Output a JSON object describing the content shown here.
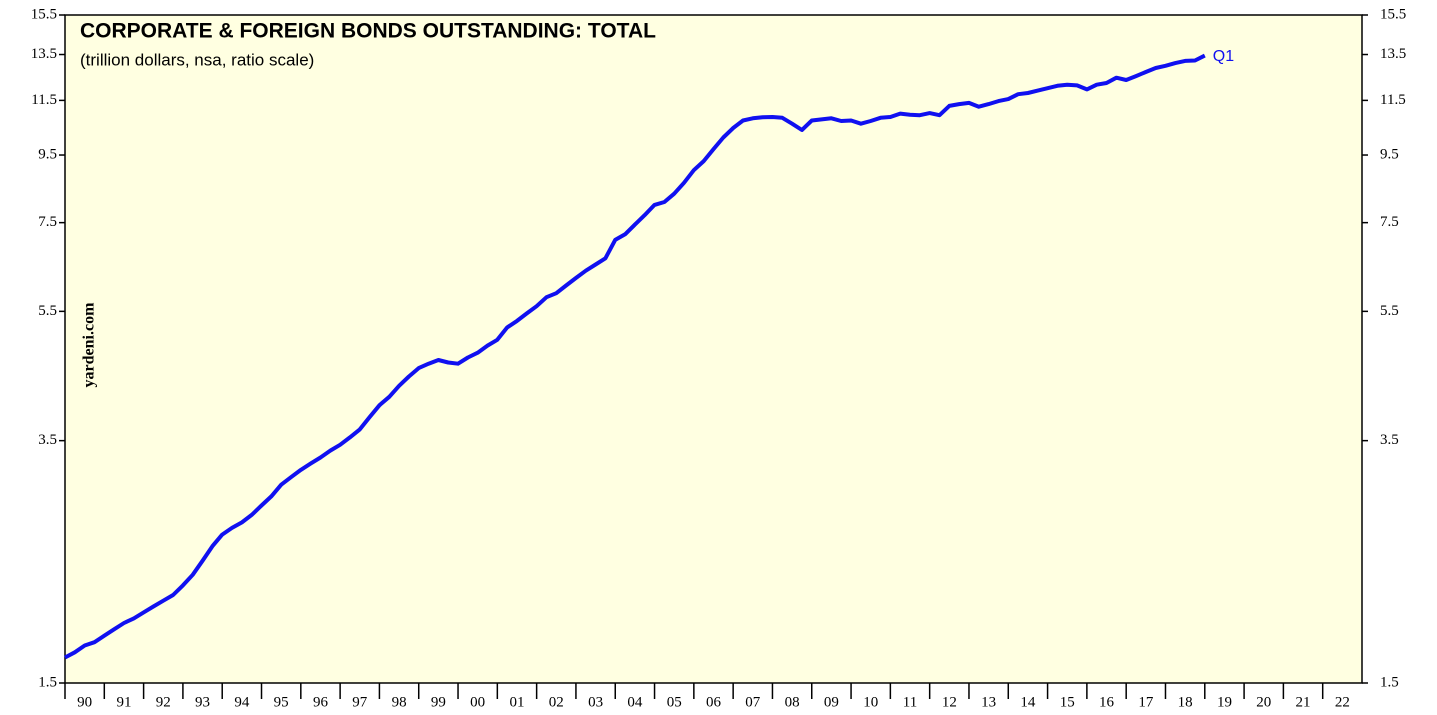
{
  "chart_data": {
    "type": "line",
    "title": "CORPORATE & FOREIGN BONDS OUTSTANDING: TOTAL",
    "subtitle": "(trillion dollars, nsa, ratio scale)",
    "watermark": "yardeni.com",
    "end_label": "Q1",
    "log_scale": true,
    "background": "#ffffe1",
    "xlim": [
      1990,
      2023
    ],
    "xticks": [
      {
        "value": 1990,
        "label": "90"
      },
      {
        "value": 1991,
        "label": "91"
      },
      {
        "value": 1992,
        "label": "92"
      },
      {
        "value": 1993,
        "label": "93"
      },
      {
        "value": 1994,
        "label": "94"
      },
      {
        "value": 1995,
        "label": "95"
      },
      {
        "value": 1996,
        "label": "96"
      },
      {
        "value": 1997,
        "label": "97"
      },
      {
        "value": 1998,
        "label": "98"
      },
      {
        "value": 1999,
        "label": "99"
      },
      {
        "value": 2000,
        "label": "00"
      },
      {
        "value": 2001,
        "label": "01"
      },
      {
        "value": 2002,
        "label": "02"
      },
      {
        "value": 2003,
        "label": "03"
      },
      {
        "value": 2004,
        "label": "04"
      },
      {
        "value": 2005,
        "label": "05"
      },
      {
        "value": 2006,
        "label": "06"
      },
      {
        "value": 2007,
        "label": "07"
      },
      {
        "value": 2008,
        "label": "08"
      },
      {
        "value": 2009,
        "label": "09"
      },
      {
        "value": 2010,
        "label": "10"
      },
      {
        "value": 2011,
        "label": "11"
      },
      {
        "value": 2012,
        "label": "12"
      },
      {
        "value": 2013,
        "label": "13"
      },
      {
        "value": 2014,
        "label": "14"
      },
      {
        "value": 2015,
        "label": "15"
      },
      {
        "value": 2016,
        "label": "16"
      },
      {
        "value": 2017,
        "label": "17"
      },
      {
        "value": 2018,
        "label": "18"
      },
      {
        "value": 2019,
        "label": "19"
      },
      {
        "value": 2020,
        "label": "20"
      },
      {
        "value": 2021,
        "label": "21"
      },
      {
        "value": 2022,
        "label": "22"
      }
    ],
    "ylim": [
      1.5,
      15.5
    ],
    "yticks": [
      1.5,
      3.5,
      5.5,
      7.5,
      9.5,
      11.5,
      13.5,
      15.5
    ],
    "x": [
      1990,
      1990.25,
      1990.5,
      1990.75,
      1991,
      1991.25,
      1991.5,
      1991.75,
      1992,
      1992.25,
      1992.5,
      1992.75,
      1993,
      1993.25,
      1993.5,
      1993.75,
      1994,
      1994.25,
      1994.5,
      1994.75,
      1995,
      1995.25,
      1995.5,
      1995.75,
      1996,
      1996.25,
      1996.5,
      1996.75,
      1997,
      1997.25,
      1997.5,
      1997.75,
      1998,
      1998.25,
      1998.5,
      1998.75,
      1999,
      1999.25,
      1999.5,
      1999.75,
      2000,
      2000.25,
      2000.5,
      2000.75,
      2001,
      2001.25,
      2001.5,
      2001.75,
      2002,
      2002.25,
      2002.5,
      2002.75,
      2003,
      2003.25,
      2003.5,
      2003.75,
      2004,
      2004.25,
      2004.5,
      2004.75,
      2005,
      2005.25,
      2005.5,
      2005.75,
      2006,
      2006.25,
      2006.5,
      2006.75,
      2007,
      2007.25,
      2007.5,
      2007.75,
      2008,
      2008.25,
      2008.5,
      2008.75,
      2009,
      2009.25,
      2009.5,
      2009.75,
      2010,
      2010.25,
      2010.5,
      2010.75,
      2011,
      2011.25,
      2011.5,
      2011.75,
      2012,
      2012.25,
      2012.5,
      2012.75,
      2013,
      2013.25,
      2013.5,
      2013.75,
      2014,
      2014.25,
      2014.5,
      2014.75,
      2015,
      2015.25,
      2015.5,
      2015.75,
      2016,
      2016.25,
      2016.5,
      2016.75,
      2017,
      2017.25,
      2017.5,
      2017.75,
      2018,
      2018.25,
      2018.5,
      2018.75,
      2019
    ],
    "series": [
      {
        "name": "Total",
        "color": "#1010f0",
        "values": [
          1.64,
          1.67,
          1.71,
          1.73,
          1.77,
          1.81,
          1.85,
          1.88,
          1.92,
          1.96,
          2.0,
          2.04,
          2.11,
          2.19,
          2.3,
          2.42,
          2.52,
          2.58,
          2.63,
          2.7,
          2.79,
          2.88,
          3.0,
          3.08,
          3.16,
          3.23,
          3.3,
          3.38,
          3.45,
          3.54,
          3.64,
          3.8,
          3.96,
          4.08,
          4.24,
          4.38,
          4.51,
          4.58,
          4.64,
          4.6,
          4.58,
          4.68,
          4.76,
          4.88,
          4.98,
          5.2,
          5.32,
          5.46,
          5.6,
          5.78,
          5.86,
          6.02,
          6.18,
          6.34,
          6.48,
          6.62,
          7.06,
          7.2,
          7.45,
          7.7,
          7.98,
          8.06,
          8.3,
          8.62,
          9.01,
          9.3,
          9.7,
          10.1,
          10.44,
          10.72,
          10.8,
          10.84,
          10.85,
          10.82,
          10.6,
          10.37,
          10.72,
          10.76,
          10.8,
          10.7,
          10.72,
          10.6,
          10.7,
          10.82,
          10.85,
          10.98,
          10.94,
          10.92,
          11.0,
          10.92,
          11.28,
          11.35,
          11.4,
          11.25,
          11.35,
          11.47,
          11.55,
          11.75,
          11.8,
          11.9,
          12.0,
          12.1,
          12.15,
          12.12,
          11.95,
          12.15,
          12.22,
          12.45,
          12.35,
          12.52,
          12.7,
          12.88,
          12.98,
          13.1,
          13.2,
          13.22,
          13.45
        ]
      }
    ]
  }
}
